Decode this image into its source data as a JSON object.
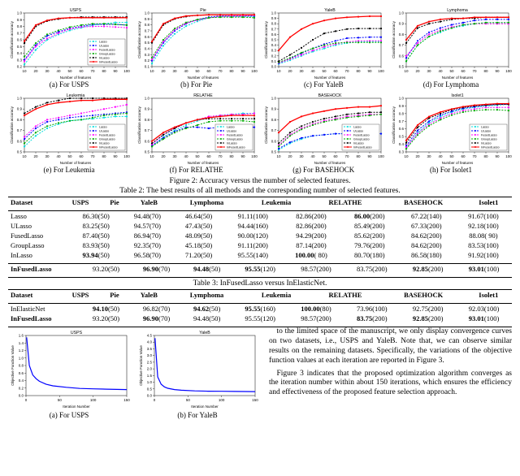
{
  "methods": [
    {
      "name": "Lasso",
      "color": "#00dddd",
      "marker": "circle"
    },
    {
      "name": "ULasso",
      "color": "#0000ff",
      "marker": "circle"
    },
    {
      "name": "FusedLasso",
      "color": "#ff00ff",
      "marker": "circle"
    },
    {
      "name": "GroupLasso",
      "color": "#00aa00",
      "marker": "circle"
    },
    {
      "name": "InLasso",
      "color": "#000000",
      "marker": "circle"
    },
    {
      "name": "InFusedLasso",
      "color": "#ff0000",
      "marker": "circle"
    }
  ],
  "charts_row1": [
    {
      "title": "USPS",
      "caption": "(a) For USPS",
      "ylim": [
        0.2,
        1.0
      ],
      "ytick": 0.1,
      "series": [
        [
          0.23,
          0.45,
          0.6,
          0.68,
          0.74,
          0.78,
          0.82,
          0.84,
          0.86,
          0.86
        ],
        [
          0.3,
          0.52,
          0.66,
          0.72,
          0.77,
          0.8,
          0.83,
          0.83,
          0.83,
          0.82
        ],
        [
          0.28,
          0.5,
          0.62,
          0.7,
          0.76,
          0.79,
          0.8,
          0.8,
          0.79,
          0.78
        ],
        [
          0.35,
          0.55,
          0.68,
          0.74,
          0.79,
          0.82,
          0.84,
          0.84,
          0.83,
          0.82
        ],
        [
          0.55,
          0.8,
          0.88,
          0.91,
          0.93,
          0.94,
          0.94,
          0.94,
          0.94,
          0.94
        ],
        [
          0.58,
          0.82,
          0.89,
          0.92,
          0.93,
          0.93,
          0.93,
          0.93,
          0.93,
          0.93
        ]
      ]
    },
    {
      "title": "Pie",
      "caption": "(b) For Pie",
      "ylim": [
        0.1,
        1.0
      ],
      "ytick": 0.1,
      "series": [
        [
          0.15,
          0.45,
          0.65,
          0.78,
          0.86,
          0.92,
          0.94,
          0.94,
          0.94,
          0.94
        ],
        [
          0.2,
          0.5,
          0.7,
          0.82,
          0.89,
          0.93,
          0.95,
          0.95,
          0.95,
          0.95
        ],
        [
          0.22,
          0.52,
          0.72,
          0.83,
          0.88,
          0.92,
          0.94,
          0.95,
          0.95,
          0.96
        ],
        [
          0.25,
          0.55,
          0.74,
          0.84,
          0.89,
          0.92,
          0.93,
          0.93,
          0.93,
          0.92
        ],
        [
          0.5,
          0.8,
          0.9,
          0.94,
          0.96,
          0.97,
          0.97,
          0.97,
          0.97,
          0.97
        ],
        [
          0.52,
          0.82,
          0.91,
          0.95,
          0.96,
          0.97,
          0.97,
          0.97,
          0.97,
          0.97
        ]
      ]
    },
    {
      "title": "YaleB",
      "caption": "(c) For YaleB",
      "ylim": [
        0.0,
        1.0
      ],
      "ytick": 0.1,
      "series": [
        [
          0.05,
          0.12,
          0.2,
          0.28,
          0.34,
          0.4,
          0.44,
          0.46,
          0.47,
          0.47
        ],
        [
          0.06,
          0.15,
          0.25,
          0.34,
          0.42,
          0.48,
          0.53,
          0.54,
          0.55,
          0.55
        ],
        [
          0.07,
          0.14,
          0.22,
          0.3,
          0.37,
          0.42,
          0.46,
          0.48,
          0.48,
          0.48
        ],
        [
          0.08,
          0.16,
          0.26,
          0.34,
          0.4,
          0.44,
          0.45,
          0.45,
          0.45,
          0.45
        ],
        [
          0.1,
          0.22,
          0.35,
          0.5,
          0.62,
          0.66,
          0.7,
          0.71,
          0.71,
          0.71
        ],
        [
          0.3,
          0.55,
          0.7,
          0.8,
          0.86,
          0.9,
          0.92,
          0.93,
          0.94,
          0.94
        ]
      ]
    },
    {
      "title": "Lymphoma",
      "caption": "(d) For Lymphoma",
      "ylim": [
        0.5,
        1.0
      ],
      "ytick": 0.1,
      "series": [
        [
          0.55,
          0.7,
          0.78,
          0.82,
          0.86,
          0.88,
          0.9,
          0.91,
          0.91,
          0.91
        ],
        [
          0.58,
          0.74,
          0.82,
          0.86,
          0.89,
          0.91,
          0.93,
          0.94,
          0.94,
          0.94
        ],
        [
          0.6,
          0.72,
          0.8,
          0.84,
          0.87,
          0.89,
          0.9,
          0.9,
          0.9,
          0.9
        ],
        [
          0.55,
          0.7,
          0.78,
          0.83,
          0.86,
          0.89,
          0.9,
          0.91,
          0.91,
          0.91
        ],
        [
          0.72,
          0.86,
          0.9,
          0.92,
          0.94,
          0.95,
          0.95,
          0.96,
          0.96,
          0.96
        ],
        [
          0.75,
          0.88,
          0.92,
          0.94,
          0.95,
          0.95,
          0.96,
          0.96,
          0.96,
          0.96
        ]
      ]
    }
  ],
  "charts_row2": [
    {
      "title": "Leukemia",
      "caption": "(e) For Leukemia",
      "ylim": [
        0.5,
        1.0
      ],
      "ytick": 0.1,
      "series": [
        [
          0.55,
          0.65,
          0.72,
          0.76,
          0.79,
          0.8,
          0.81,
          0.82,
          0.83,
          0.83
        ],
        [
          0.62,
          0.72,
          0.78,
          0.8,
          0.82,
          0.83,
          0.84,
          0.85,
          0.86,
          0.87
        ],
        [
          0.64,
          0.74,
          0.8,
          0.82,
          0.84,
          0.86,
          0.88,
          0.9,
          0.92,
          0.94
        ],
        [
          0.58,
          0.68,
          0.74,
          0.77,
          0.79,
          0.8,
          0.82,
          0.84,
          0.85,
          0.86
        ],
        [
          0.86,
          0.92,
          0.96,
          0.98,
          1.0,
          1.0,
          1.0,
          1.0,
          1.0,
          1.0
        ],
        [
          0.84,
          0.9,
          0.94,
          0.96,
          0.97,
          0.98,
          0.98,
          0.99,
          0.99,
          0.99
        ]
      ]
    },
    {
      "title": "RELATHE",
      "caption": "(f) For RELATHE",
      "ylim": [
        0.5,
        1.0
      ],
      "ytick": 0.1,
      "series": [
        [
          0.55,
          0.64,
          0.7,
          0.75,
          0.79,
          0.82,
          0.84,
          0.85,
          0.86,
          0.86
        ],
        [
          0.56,
          0.63,
          0.69,
          0.73,
          0.73,
          0.72,
          0.73,
          0.73,
          0.73,
          0.73
        ],
        [
          0.57,
          0.66,
          0.72,
          0.77,
          0.8,
          0.83,
          0.84,
          0.85,
          0.85,
          0.86
        ],
        [
          0.55,
          0.62,
          0.68,
          0.72,
          0.75,
          0.78,
          0.79,
          0.79,
          0.79,
          0.78
        ],
        [
          0.58,
          0.66,
          0.72,
          0.77,
          0.8,
          0.81,
          0.81,
          0.81,
          0.81,
          0.81
        ],
        [
          0.6,
          0.68,
          0.73,
          0.77,
          0.8,
          0.82,
          0.83,
          0.84,
          0.84,
          0.84
        ]
      ]
    },
    {
      "title": "BASEHOCK",
      "caption": "(g) For BASEHOCK",
      "ylim": [
        0.5,
        1.0
      ],
      "ytick": 0.1,
      "series": [
        [
          0.52,
          0.58,
          0.62,
          0.65,
          0.66,
          0.67,
          0.67,
          0.67,
          0.67,
          0.67
        ],
        [
          0.53,
          0.59,
          0.63,
          0.65,
          0.66,
          0.67,
          0.67,
          0.67,
          0.67,
          0.67
        ],
        [
          0.56,
          0.66,
          0.72,
          0.76,
          0.79,
          0.81,
          0.83,
          0.84,
          0.85,
          0.85
        ],
        [
          0.55,
          0.65,
          0.71,
          0.75,
          0.78,
          0.8,
          0.82,
          0.83,
          0.84,
          0.85
        ],
        [
          0.58,
          0.68,
          0.74,
          0.78,
          0.81,
          0.83,
          0.85,
          0.86,
          0.87,
          0.87
        ],
        [
          0.68,
          0.78,
          0.83,
          0.86,
          0.88,
          0.9,
          0.91,
          0.92,
          0.92,
          0.93
        ]
      ]
    },
    {
      "title": "Isolet1",
      "caption": "(h) For Isolet1",
      "ylim": [
        0.3,
        1.0
      ],
      "ytick": 0.1,
      "series": [
        [
          0.35,
          0.55,
          0.68,
          0.76,
          0.82,
          0.86,
          0.88,
          0.9,
          0.91,
          0.92
        ],
        [
          0.38,
          0.58,
          0.7,
          0.78,
          0.83,
          0.87,
          0.89,
          0.91,
          0.92,
          0.92
        ],
        [
          0.36,
          0.54,
          0.66,
          0.74,
          0.8,
          0.84,
          0.86,
          0.88,
          0.88,
          0.88
        ],
        [
          0.34,
          0.52,
          0.64,
          0.72,
          0.78,
          0.82,
          0.84,
          0.85,
          0.85,
          0.84
        ],
        [
          0.42,
          0.62,
          0.74,
          0.8,
          0.85,
          0.88,
          0.9,
          0.91,
          0.92,
          0.92
        ],
        [
          0.45,
          0.65,
          0.76,
          0.82,
          0.86,
          0.89,
          0.91,
          0.92,
          0.93,
          0.93
        ]
      ]
    }
  ],
  "mini_x": [
    10,
    20,
    30,
    40,
    50,
    60,
    70,
    80,
    90,
    100
  ],
  "mini_xlabel": "Number of features",
  "mini_ylabel": "Classification accuracy",
  "fig2_caption": "Figure 2: Accuracy versus the number of selected features.",
  "table2_caption": "Table 2: The best results of all methods and the corresponding number of selected features.",
  "table2": {
    "header": [
      "Dataset",
      "USPS",
      "Pie",
      "YaleB",
      "Lymphoma",
      "Leukemia",
      "RELATHE",
      "BASEHOCK",
      "Isolet1"
    ],
    "rows": [
      [
        "Lasso",
        "86.30(50)",
        "94.48(70)",
        "46.64(50)",
        "91.11(100)",
        "82.86(200)",
        "86.00(200)",
        "67.22(140)",
        "91.67(100)"
      ],
      [
        "ULasso",
        "83.25(50)",
        "94.57(70)",
        "47.43(50)",
        "94.44(160)",
        "82.86(200)",
        "85.49(200)",
        "67.33(200)",
        "92.18(100)"
      ],
      [
        "FusedLasso",
        "87.40(50)",
        "86.94(70)",
        "48.09(50)",
        "90.00(120)",
        "94.29(200)",
        "85.62(200)",
        "84.62(200)",
        "88.08( 90)"
      ],
      [
        "GroupLasso",
        "83.93(50)",
        "92.35(70)",
        "45.18(50)",
        "91.11(200)",
        "87.14(200)",
        "79.76(200)",
        "84.62(200)",
        "83.53(100)"
      ],
      [
        "InLasso",
        "93.94(50)",
        "96.58(70)",
        "71.20(50)",
        "95.55(140)",
        "100.00( 80)",
        "80.70(180)",
        "86.58(180)",
        "91.92(100)"
      ],
      [
        "InFusedLasso",
        "93.20(50)",
        "96.90(70)",
        "94.48(50)",
        "95.55(120)",
        "98.57(200)",
        "83.75(200)",
        "92.85(200)",
        "93.01(100)"
      ]
    ],
    "bold_cells": [
      [
        4,
        1
      ],
      [
        5,
        2
      ],
      [
        5,
        3
      ],
      [
        5,
        4
      ],
      [
        4,
        5
      ],
      [
        0,
        6
      ],
      [
        5,
        7
      ],
      [
        5,
        8
      ]
    ],
    "last_row_bold_label": true
  },
  "table3_caption": "Table 3: InFusedLasso versus InElasticNet.",
  "table3": {
    "header": [
      "Dataset",
      "USPS",
      "Pie",
      "YaleB",
      "Lymphoma",
      "Leukemia",
      "RELATHE",
      "BASEHOCK",
      "Isolet1"
    ],
    "rows": [
      [
        "InElasticNet",
        "94.10(50)",
        "96.82(70)",
        "94.62(50)",
        "95.55(160)",
        "100.00(80)",
        "73.96(100)",
        "92.75(200)",
        "92.03(100)"
      ],
      [
        "InFusedLasso",
        "93.20(50)",
        "96.90(70)",
        "94.48(50)",
        "95.55(120)",
        "98.57(200)",
        "83.75(200)",
        "92.85(200)",
        "93.01(100)"
      ]
    ],
    "bold_cells": [
      [
        0,
        1
      ],
      [
        1,
        2
      ],
      [
        0,
        3
      ],
      [
        0,
        4
      ],
      [
        0,
        5
      ],
      [
        1,
        6
      ],
      [
        1,
        7
      ],
      [
        1,
        8
      ]
    ],
    "row_label_bold": [
      false,
      true
    ]
  },
  "conv_charts": [
    {
      "title": "USPS",
      "caption": "(a) For USPS",
      "ylim": [
        0,
        1.6
      ],
      "ytick": 0.2,
      "x": [
        1,
        5,
        10,
        15,
        20,
        30,
        40,
        60,
        80,
        100,
        120,
        150
      ],
      "y": [
        1.55,
        0.8,
        0.55,
        0.45,
        0.38,
        0.3,
        0.26,
        0.22,
        0.19,
        0.18,
        0.17,
        0.16
      ],
      "color": "#0000ff"
    },
    {
      "title": "YaleB",
      "caption": "(b) For YaleB",
      "ylim": [
        0,
        4.5
      ],
      "ytick": 0.5,
      "x": [
        1,
        5,
        10,
        15,
        20,
        30,
        40,
        60,
        80,
        100,
        120,
        150
      ],
      "y": [
        4.3,
        1.4,
        0.85,
        0.65,
        0.55,
        0.45,
        0.4,
        0.35,
        0.33,
        0.32,
        0.31,
        0.3
      ],
      "color": "#0000ff"
    }
  ],
  "conv_xlabel": "Iteration Number",
  "conv_ylabel": "Objective Function Value",
  "text": {
    "p1": "to the limited space of the manuscript, we only display convergence curves on two datasets, i.e., USPS and YaleB. Note that, we can observe similar results on the remaining datasets. Specifically, the variations of the objective function values at each iteration are reported in Figure 3.",
    "p2": "Figure 3 indicates that the proposed optimization algorithm converges as the iteration number within about 150 iterations, which ensures the efficiency and effectiveness of the proposed feature selection approach."
  }
}
